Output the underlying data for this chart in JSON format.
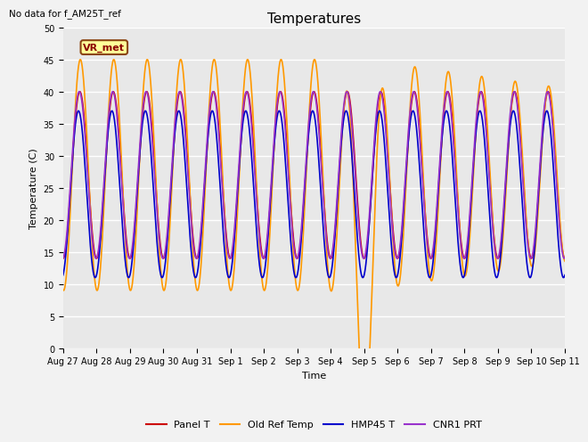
{
  "title": "Temperatures",
  "xlabel": "Time",
  "ylabel": "Temperature (C)",
  "ylim": [
    0,
    50
  ],
  "bg_color": "#e8e8e8",
  "fig_color": "#f2f2f2",
  "no_data_text": "No data for f_AM25T_ref",
  "vr_met_label": "VR_met",
  "x_tick_labels": [
    "Aug 27",
    "Aug 28",
    "Aug 29",
    "Aug 30",
    "Aug 31",
    "Sep 1",
    "Sep 2",
    "Sep 3",
    "Sep 4",
    "Sep 5",
    "Sep 6",
    "Sep 7",
    "Sep 8",
    "Sep 9",
    "Sep 10",
    "Sep 11"
  ],
  "legend_labels": [
    "Panel T",
    "Old Ref Temp",
    "HMP45 T",
    "CNR1 PRT"
  ],
  "legend_colors": [
    "#cc0000",
    "#ff9900",
    "#0000cc",
    "#9933cc"
  ],
  "n_points": 3000,
  "days": 15
}
